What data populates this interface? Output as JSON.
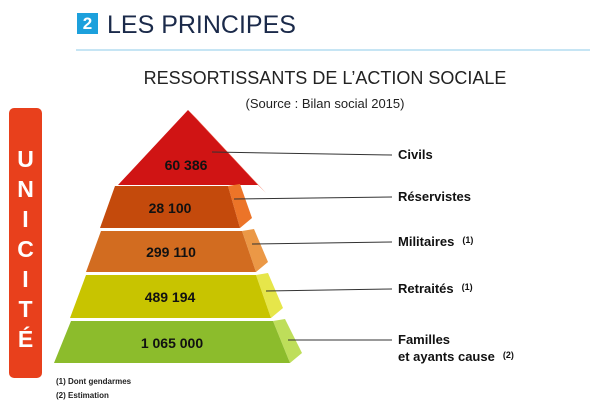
{
  "header": {
    "number": "2",
    "title": "LES PRINCIPES"
  },
  "title": "RESSORTISSANTS DE L’ACTION SOCIALE",
  "subtitle": "(Source : Bilan social 2015)",
  "side_label": "UNICITÉ",
  "levels": [
    {
      "value": "60 386",
      "label_lines": [
        "Civils"
      ]
    },
    {
      "value": "28 100",
      "label_lines": [
        "Réservistes"
      ]
    },
    {
      "value": "299 110",
      "label_lines": [
        "Militaires"
      ],
      "note": "(1)"
    },
    {
      "value": "489 194",
      "label_lines": [
        "Retraités"
      ],
      "note": "(1)"
    },
    {
      "value": "1 065 000",
      "label_lines": [
        "Familles",
        "et ayants cause"
      ],
      "note": "(2)"
    }
  ],
  "footnotes": [
    "(1) Dont gendarmes",
    "(2) Estimation"
  ]
}
